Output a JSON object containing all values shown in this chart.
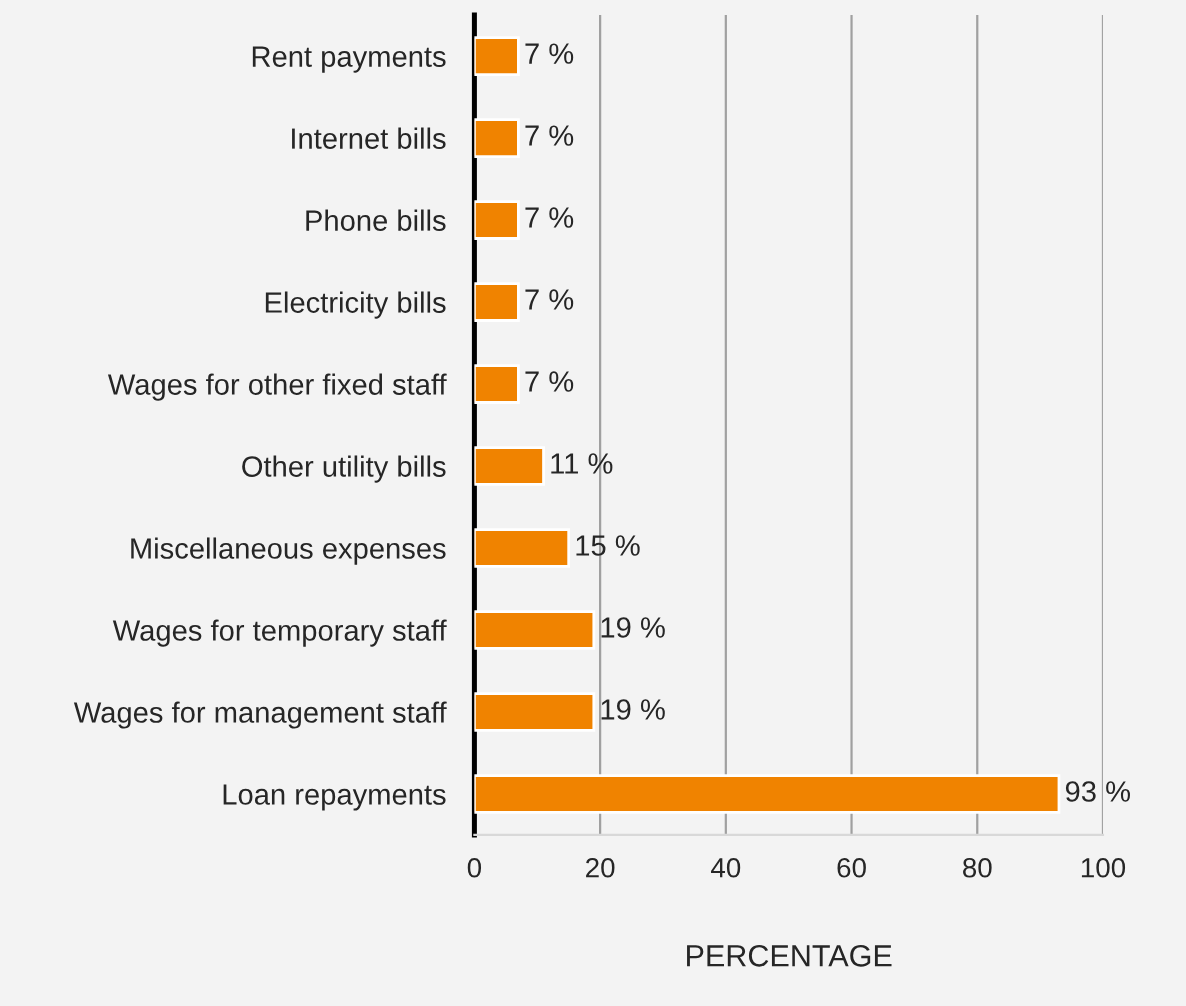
{
  "chart_data": {
    "type": "bar",
    "orientation": "horizontal",
    "xlabel": "PERCENTAGE",
    "categories": [
      "Rent payments",
      "Internet bills",
      "Phone bills",
      "Electricity bills",
      "Wages for other fixed staff",
      "Other utility bills",
      "Miscellaneous expenses",
      "Wages for temporary staff",
      "Wages for management staff",
      "Loan repayments"
    ],
    "values": [
      7,
      7,
      7,
      7,
      7,
      11,
      15,
      19,
      19,
      93
    ],
    "value_labels": [
      "7 %",
      "7 %",
      "7 %",
      "7 %",
      "7 %",
      "11 %",
      "15 %",
      "19 %",
      "19 %",
      "93 %"
    ],
    "color": "#f08300",
    "xlim": [
      0,
      100
    ],
    "xticks": [
      0,
      20,
      40,
      60,
      80,
      100
    ],
    "grid": "x",
    "legend": false
  }
}
